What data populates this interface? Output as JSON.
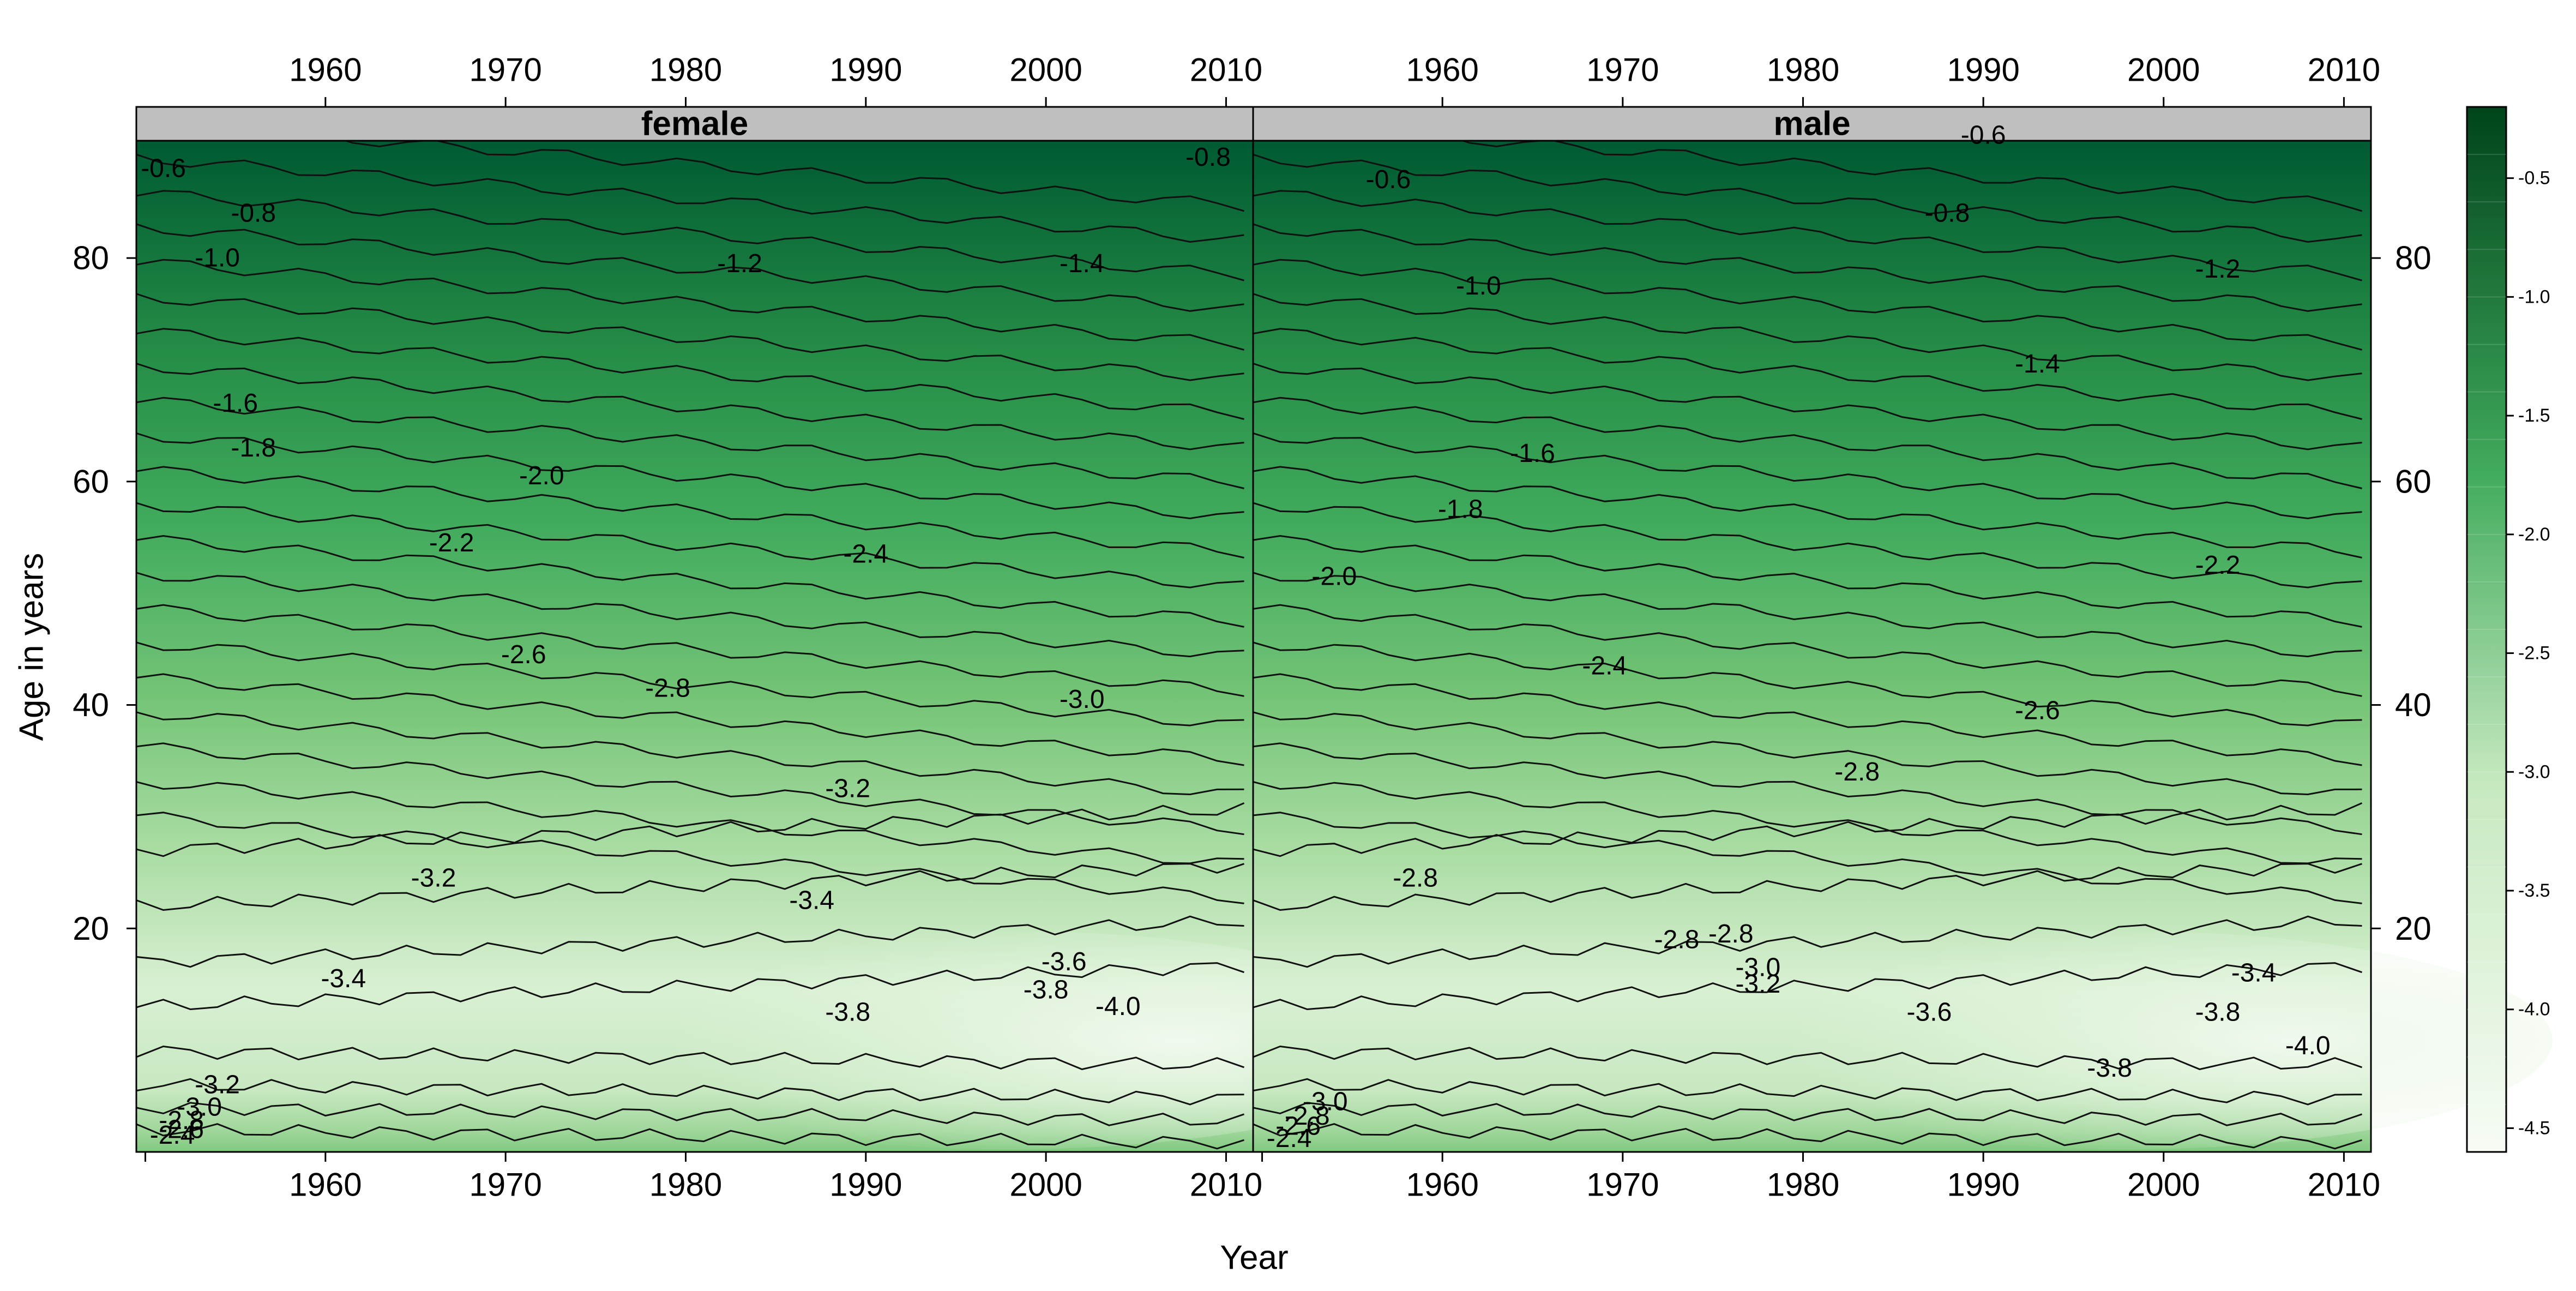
{
  "chart_data": {
    "type": "heatmap",
    "subtype": "filled-contour (levelplot), two panels",
    "xlabel": "Year",
    "ylabel": "Age in years",
    "xlim": [
      1949.5,
      2011.5
    ],
    "ylim": [
      0,
      90.5
    ],
    "x_ticks": [
      "1960",
      "1970",
      "1980",
      "1990",
      "2000",
      "2010"
    ],
    "x_tick_values": [
      1960,
      1970,
      1980,
      1990,
      2000,
      2010
    ],
    "y_ticks": [
      "20",
      "40",
      "60",
      "80"
    ],
    "y_tick_values": [
      20,
      40,
      60,
      80
    ],
    "panels": [
      {
        "label": "female",
        "contour_labels": [
          {
            "text": "-0.6",
            "year": 1951,
            "age": 88
          },
          {
            "text": "-0.8",
            "year": 2009,
            "age": 89
          },
          {
            "text": "-0.8",
            "year": 1956,
            "age": 84
          },
          {
            "text": "-1.0",
            "year": 1954,
            "age": 80
          },
          {
            "text": "-1.2",
            "year": 1983,
            "age": 79.5
          },
          {
            "text": "-1.4",
            "year": 2002,
            "age": 79.5
          },
          {
            "text": "-1.6",
            "year": 1955,
            "age": 67
          },
          {
            "text": "-1.8",
            "year": 1956,
            "age": 63
          },
          {
            "text": "-2.0",
            "year": 1972,
            "age": 60.5
          },
          {
            "text": "-2.2",
            "year": 1967,
            "age": 54.5
          },
          {
            "text": "-2.4",
            "year": 1990,
            "age": 53.5
          },
          {
            "text": "-2.6",
            "year": 1971,
            "age": 44.5
          },
          {
            "text": "-2.8",
            "year": 1979,
            "age": 41.5
          },
          {
            "text": "-3.0",
            "year": 2002,
            "age": 40.5
          },
          {
            "text": "-3.2",
            "year": 1989,
            "age": 32.5
          },
          {
            "text": "-3.2",
            "year": 1966,
            "age": 24.5
          },
          {
            "text": "-3.4",
            "year": 1987,
            "age": 22.5
          },
          {
            "text": "-3.4",
            "year": 1961,
            "age": 15.5
          },
          {
            "text": "-3.6",
            "year": 2001,
            "age": 17
          },
          {
            "text": "-3.8",
            "year": 2000,
            "age": 14.5
          },
          {
            "text": "-3.8",
            "year": 1989,
            "age": 12.5
          },
          {
            "text": "-4.0",
            "year": 2004,
            "age": 13
          },
          {
            "text": "-3.2",
            "year": 1954,
            "age": 6
          },
          {
            "text": "-3.0",
            "year": 1953,
            "age": 4
          },
          {
            "text": "-2.8",
            "year": 1952,
            "age": 2.8
          },
          {
            "text": "-2.6",
            "year": 1952,
            "age": 2
          },
          {
            "text": "-2.4",
            "year": 1951.5,
            "age": 1.5
          }
        ]
      },
      {
        "label": "male",
        "contour_labels": [
          {
            "text": "-0.6",
            "year": 1957,
            "age": 87
          },
          {
            "text": "-0.6",
            "year": 1990,
            "age": 91
          },
          {
            "text": "-0.8",
            "year": 1988,
            "age": 84
          },
          {
            "text": "-1.0",
            "year": 1962,
            "age": 77.5
          },
          {
            "text": "-1.2",
            "year": 2003,
            "age": 79
          },
          {
            "text": "-1.4",
            "year": 1993,
            "age": 70.5
          },
          {
            "text": "-1.6",
            "year": 1965,
            "age": 62.5
          },
          {
            "text": "-1.8",
            "year": 1961,
            "age": 57.5
          },
          {
            "text": "-2.0",
            "year": 1954,
            "age": 51.5
          },
          {
            "text": "-2.2",
            "year": 2003,
            "age": 52.5
          },
          {
            "text": "-2.4",
            "year": 1969,
            "age": 43.5
          },
          {
            "text": "-2.6",
            "year": 1993,
            "age": 39.5
          },
          {
            "text": "-2.8",
            "year": 1983,
            "age": 34
          },
          {
            "text": "-2.8",
            "year": 1958.5,
            "age": 24.5
          },
          {
            "text": "-2.8",
            "year": 1973,
            "age": 19
          },
          {
            "text": "-2.8",
            "year": 1976,
            "age": 19.5
          },
          {
            "text": "-3.0",
            "year": 1977.5,
            "age": 16.5
          },
          {
            "text": "-3.2",
            "year": 1977.5,
            "age": 15
          },
          {
            "text": "-3.4",
            "year": 2005,
            "age": 16
          },
          {
            "text": "-3.6",
            "year": 1987,
            "age": 12.5
          },
          {
            "text": "-3.8",
            "year": 2003,
            "age": 12.5
          },
          {
            "text": "-3.8",
            "year": 1997,
            "age": 7.5
          },
          {
            "text": "-4.0",
            "year": 2008,
            "age": 9.5
          },
          {
            "text": "-3.0",
            "year": 1953.5,
            "age": 4.5
          },
          {
            "text": "-2.8",
            "year": 1952.5,
            "age": 3.2
          },
          {
            "text": "-2.6",
            "year": 1952,
            "age": 2.3
          },
          {
            "text": "-2.4",
            "year": 1951.5,
            "age": 1.2
          }
        ]
      }
    ],
    "colorbar": {
      "ticks": [
        "-0.5",
        "-1.0",
        "-1.5",
        "-2.0",
        "-2.5",
        "-3.0",
        "-3.5",
        "-4.0",
        "-4.5"
      ],
      "tick_values": [
        -0.5,
        -1.0,
        -1.5,
        -2.0,
        -2.5,
        -3.0,
        -3.5,
        -4.0,
        -4.5
      ],
      "range": [
        -4.6,
        -0.2
      ],
      "color_low": "#f7fcf5",
      "color_high": "#00441b"
    },
    "grid": false
  }
}
